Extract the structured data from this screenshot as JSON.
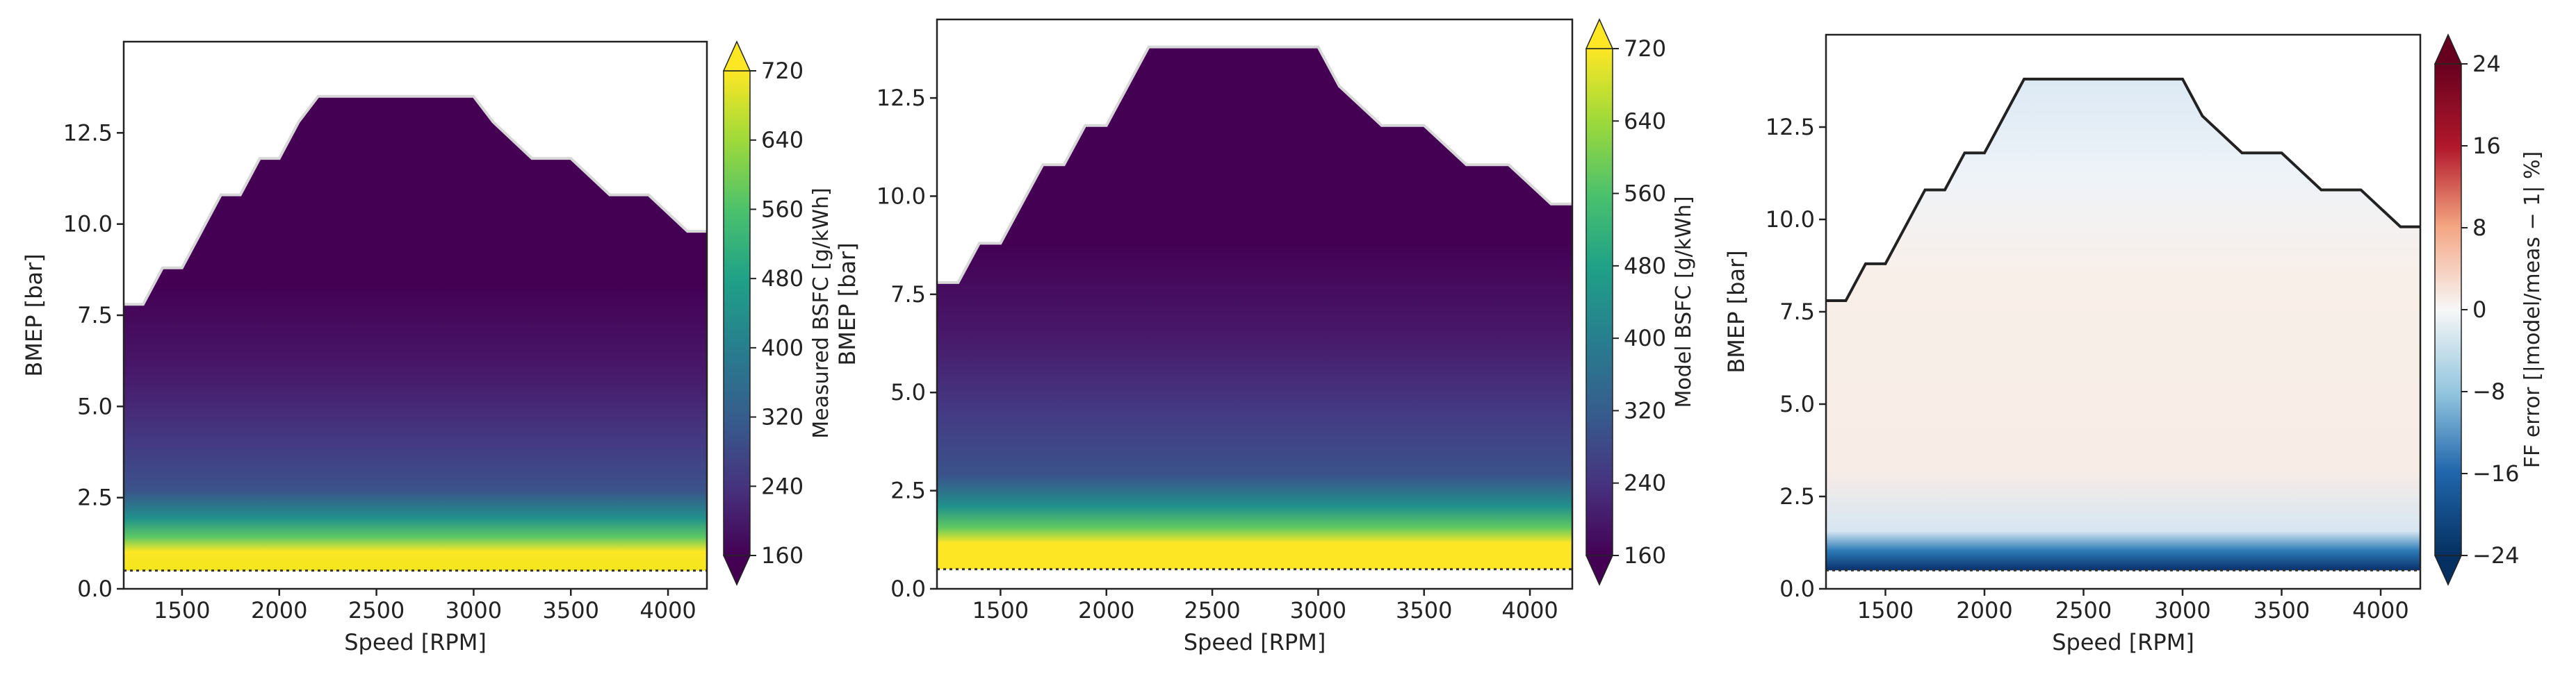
{
  "chart_data": [
    {
      "type": "heatmap",
      "panel": "measured",
      "xlabel": "Speed [RPM]",
      "ylabel": "BMEP [bar]",
      "xlim": [
        1200,
        4200
      ],
      "ylim": [
        0,
        15
      ],
      "xticks": [
        "1500",
        "2000",
        "2500",
        "3000",
        "3500",
        "4000"
      ],
      "yticks": [
        "0.0",
        "2.5",
        "5.0",
        "7.5",
        "10.0",
        "12.5"
      ],
      "colorbar": {
        "label": "Measured BSFC [g/kWh]",
        "range": [
          160,
          720
        ],
        "ticks": [
          "160",
          "240",
          "320",
          "400",
          "480",
          "560",
          "640",
          "720"
        ],
        "colormap": "viridis",
        "extend": "both"
      },
      "boundary": {
        "speed": [
          1200,
          1300,
          1400,
          1500,
          1600,
          1700,
          1800,
          1900,
          2000,
          2100,
          2200,
          3000,
          3100,
          3300,
          3500,
          3700,
          3900,
          4100,
          4200
        ],
        "bmep": [
          7.8,
          7.8,
          8.8,
          8.8,
          9.8,
          10.8,
          10.8,
          11.8,
          11.8,
          12.8,
          13.5,
          13.5,
          12.8,
          11.8,
          11.8,
          10.8,
          10.8,
          9.8,
          9.8
        ]
      },
      "min_bmep": 0.5
    },
    {
      "type": "heatmap",
      "panel": "model",
      "xlabel": "Speed [RPM]",
      "ylabel": "BMEP [bar]",
      "xlim": [
        1200,
        4200
      ],
      "ylim": [
        0,
        14.5
      ],
      "xticks": [
        "1500",
        "2000",
        "2500",
        "3000",
        "3500",
        "4000"
      ],
      "yticks": [
        "0.0",
        "2.5",
        "5.0",
        "7.5",
        "10.0",
        "12.5"
      ],
      "colorbar": {
        "label": "Model BSFC [g/kWh]",
        "range": [
          160,
          720
        ],
        "ticks": [
          "160",
          "240",
          "320",
          "400",
          "480",
          "560",
          "640",
          "720"
        ],
        "colormap": "viridis",
        "extend": "both"
      },
      "boundary": {
        "speed": [
          1200,
          1300,
          1400,
          1500,
          1600,
          1700,
          1800,
          1900,
          2000,
          2100,
          2200,
          3000,
          3100,
          3300,
          3500,
          3700,
          3900,
          4100,
          4200
        ],
        "bmep": [
          7.8,
          7.8,
          8.8,
          8.8,
          9.8,
          10.8,
          10.8,
          11.8,
          11.8,
          12.8,
          13.8,
          13.8,
          12.8,
          11.8,
          11.8,
          10.8,
          10.8,
          9.8,
          9.8
        ]
      },
      "min_bmep": 0.5
    },
    {
      "type": "heatmap",
      "panel": "error",
      "xlabel": "Speed [RPM]",
      "ylabel": "BMEP [bar]",
      "xlim": [
        1200,
        4200
      ],
      "ylim": [
        0,
        15
      ],
      "xticks": [
        "1500",
        "2000",
        "2500",
        "3000",
        "3500",
        "4000"
      ],
      "yticks": [
        "0.0",
        "2.5",
        "5.0",
        "7.5",
        "10.0",
        "12.5"
      ],
      "colorbar": {
        "label": "FF error [|model/meas − 1| %]",
        "range": [
          -24,
          24
        ],
        "ticks": [
          "−24",
          "−16",
          "−8",
          "0",
          "8",
          "16",
          "24"
        ],
        "colormap": "RdBu_r",
        "extend": "both"
      },
      "boundary": {
        "speed": [
          1200,
          1300,
          1400,
          1500,
          1600,
          1700,
          1800,
          1900,
          2000,
          2100,
          2200,
          3000,
          3100,
          3300,
          3500,
          3700,
          3900,
          4100,
          4200
        ],
        "bmep": [
          7.8,
          7.8,
          8.8,
          8.8,
          9.8,
          10.8,
          10.8,
          11.8,
          11.8,
          12.8,
          13.8,
          13.8,
          12.8,
          11.8,
          11.8,
          10.8,
          10.8,
          9.8,
          9.8
        ]
      },
      "min_bmep": 0.5
    }
  ]
}
